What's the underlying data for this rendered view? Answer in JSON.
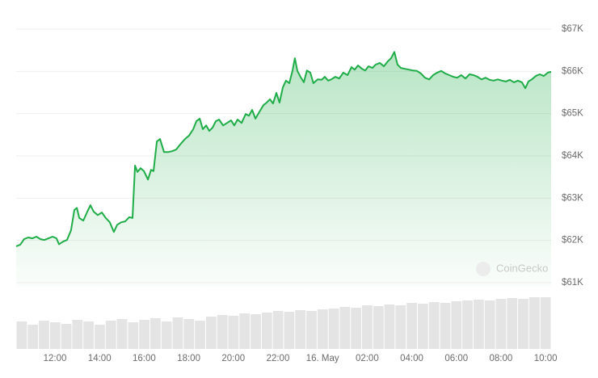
{
  "chart_data": {
    "type": "line",
    "watermark": "CoinGecko",
    "xlim": [
      10.26,
      34.25
    ],
    "xticks": [
      {
        "value": 12,
        "label": "12:00"
      },
      {
        "value": 14,
        "label": "14:00"
      },
      {
        "value": 16,
        "label": "16:00"
      },
      {
        "value": 18,
        "label": "18:00"
      },
      {
        "value": 20,
        "label": "20:00"
      },
      {
        "value": 22,
        "label": "22:00"
      },
      {
        "value": 24,
        "label": "16. May"
      },
      {
        "value": 26,
        "label": "02:00"
      },
      {
        "value": 28,
        "label": "04:00"
      },
      {
        "value": 30,
        "label": "06:00"
      },
      {
        "value": 32,
        "label": "08:00"
      },
      {
        "value": 34,
        "label": "10:00"
      }
    ],
    "ylim": [
      61000,
      67000
    ],
    "yticks": [
      {
        "value": 61000,
        "label": "$61K"
      },
      {
        "value": 62000,
        "label": "$62K"
      },
      {
        "value": 63000,
        "label": "$63K"
      },
      {
        "value": 64000,
        "label": "$64K"
      },
      {
        "value": 65000,
        "label": "$65K"
      },
      {
        "value": 66000,
        "label": "$66K"
      },
      {
        "value": 67000,
        "label": "$67K"
      }
    ],
    "grid": true,
    "color": "#1fad48",
    "x": [
      10.26,
      10.44,
      10.62,
      10.8,
      10.99,
      11.17,
      11.35,
      11.53,
      11.71,
      11.89,
      12.07,
      12.18,
      12.36,
      12.54,
      12.72,
      12.87,
      12.98,
      13.09,
      13.27,
      13.45,
      13.59,
      13.74,
      13.92,
      14.1,
      14.28,
      14.46,
      14.64,
      14.79,
      14.97,
      15.15,
      15.33,
      15.48,
      15.59,
      15.7,
      15.84,
      15.99,
      16.17,
      16.31,
      16.42,
      16.57,
      16.71,
      16.89,
      17.07,
      17.25,
      17.43,
      17.65,
      17.83,
      18.01,
      18.2,
      18.34,
      18.49,
      18.63,
      18.78,
      18.92,
      19.07,
      19.21,
      19.36,
      19.54,
      19.72,
      19.9,
      20.04,
      20.19,
      20.37,
      20.55,
      20.7,
      20.84,
      20.99,
      21.13,
      21.35,
      21.49,
      21.64,
      21.78,
      21.93,
      22.07,
      22.22,
      22.36,
      22.51,
      22.65,
      22.76,
      22.87,
      23.01,
      23.16,
      23.3,
      23.45,
      23.59,
      23.78,
      23.96,
      24.1,
      24.25,
      24.39,
      24.57,
      24.75,
      24.93,
      25.12,
      25.3,
      25.44,
      25.59,
      25.77,
      25.91,
      26.06,
      26.24,
      26.38,
      26.57,
      26.75,
      26.93,
      27.07,
      27.22,
      27.36,
      27.51,
      27.69,
      27.87,
      28.05,
      28.23,
      28.41,
      28.59,
      28.78,
      28.96,
      29.14,
      29.32,
      29.5,
      29.68,
      29.86,
      30.04,
      30.22,
      30.41,
      30.59,
      30.77,
      30.95,
      31.13,
      31.31,
      31.49,
      31.67,
      31.86,
      32.04,
      32.22,
      32.4,
      32.58,
      32.76,
      32.94,
      33.09,
      33.23,
      33.38,
      33.56,
      33.74,
      33.92,
      34.1,
      34.25
    ],
    "values": [
      61860,
      61900,
      62030,
      62070,
      62050,
      62090,
      62030,
      62010,
      62050,
      62090,
      62050,
      61910,
      61970,
      62010,
      62240,
      62720,
      62770,
      62530,
      62470,
      62680,
      62830,
      62680,
      62600,
      62660,
      62530,
      62430,
      62200,
      62370,
      62430,
      62450,
      62550,
      62530,
      63770,
      63620,
      63710,
      63640,
      63440,
      63670,
      63640,
      64340,
      64400,
      64090,
      64090,
      64110,
      64150,
      64290,
      64400,
      64480,
      64630,
      64820,
      64880,
      64630,
      64720,
      64590,
      64670,
      64820,
      64860,
      64720,
      64780,
      64840,
      64720,
      64860,
      64780,
      64990,
      64950,
      65090,
      64880,
      65010,
      65200,
      65260,
      65340,
      65240,
      65490,
      65260,
      65620,
      65780,
      65720,
      66010,
      66310,
      66010,
      65870,
      65740,
      66020,
      65970,
      65720,
      65810,
      65800,
      65870,
      65780,
      65810,
      65870,
      65830,
      65970,
      65910,
      66100,
      66040,
      66140,
      66060,
      66020,
      66120,
      66080,
      66160,
      66200,
      66120,
      66240,
      66310,
      66460,
      66160,
      66080,
      66060,
      66040,
      66020,
      66010,
      65950,
      65850,
      65810,
      65910,
      65970,
      66010,
      65950,
      65910,
      65870,
      65850,
      65910,
      65830,
      65930,
      65910,
      65870,
      65810,
      65850,
      65800,
      65780,
      65810,
      65780,
      65760,
      65800,
      65740,
      65780,
      65740,
      65600,
      65760,
      65810,
      65890,
      65930,
      65890,
      65970,
      65990
    ],
    "volume": {
      "color": "#e4e4e4",
      "ylim": [
        0,
        70
      ],
      "values": [
        34,
        30,
        35,
        33,
        31,
        36,
        34,
        30,
        35,
        37,
        33,
        36,
        38,
        34,
        39,
        37,
        35,
        40,
        42,
        41,
        44,
        43,
        45,
        47,
        46,
        48,
        47,
        49,
        50,
        52,
        51,
        54,
        53,
        55,
        54,
        57,
        56,
        58,
        57,
        59,
        60,
        61,
        60,
        62,
        63,
        62,
        64,
        64
      ]
    }
  }
}
